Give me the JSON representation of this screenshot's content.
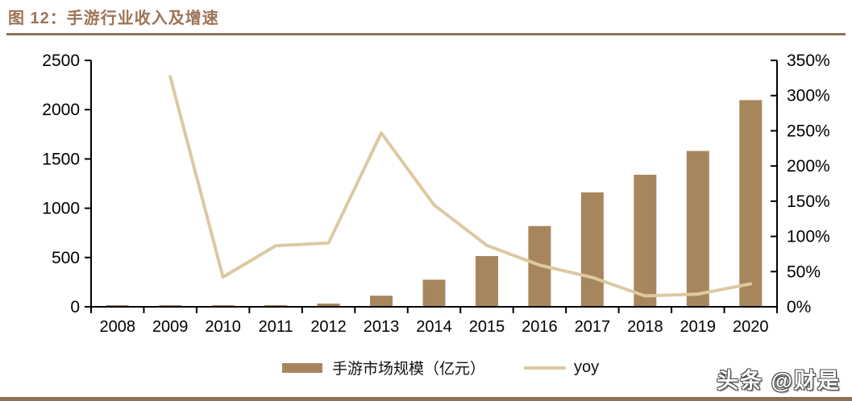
{
  "figure": {
    "title": "图 12：手游行业收入及增速",
    "title_color": "#9d7456",
    "rule_color": "#8d7355"
  },
  "watermark": {
    "text": "头条 @财是"
  },
  "chart_data": {
    "type": "bar",
    "subtype": "bar+line combo",
    "title": "手游行业收入及增速",
    "categories": [
      "2008",
      "2009",
      "2010",
      "2011",
      "2012",
      "2013",
      "2014",
      "2015",
      "2016",
      "2017",
      "2018",
      "2019",
      "2020"
    ],
    "series": [
      {
        "name": "手游市场规模（亿元）",
        "type": "bar",
        "axis": "left",
        "color": "#a8865d",
        "values": [
          1.5,
          6.4,
          9.1,
          17.0,
          32.4,
          112.4,
          274.9,
          514.6,
          819.2,
          1161.2,
          1339.6,
          1581.1,
          2096.8
        ]
      },
      {
        "name": "yoy",
        "type": "line",
        "axis": "right",
        "color": "#dcc9a2",
        "values": [
          null,
          326.7,
          42.2,
          86.8,
          90.6,
          246.9,
          144.6,
          87.2,
          59.2,
          41.7,
          15.4,
          18.0,
          32.6
        ]
      }
    ],
    "left_axis": {
      "min": 0,
      "max": 2500,
      "step": 500,
      "ticks": [
        "0",
        "500",
        "1000",
        "1500",
        "2000",
        "2500"
      ]
    },
    "right_axis": {
      "min": 0,
      "max": 350,
      "step": 50,
      "ticks": [
        "0%",
        "50%",
        "100%",
        "150%",
        "200%",
        "250%",
        "300%",
        "350%"
      ]
    },
    "grid": "off",
    "legend_position": "bottom",
    "axis_color": "#000000"
  }
}
